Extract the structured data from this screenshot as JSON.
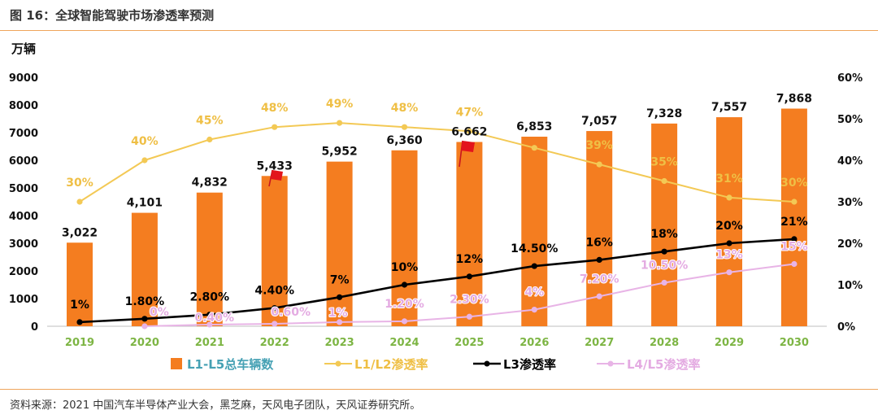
{
  "source": "资料来源：2021 中国汽车半导体产业大会，黑芝麻，天风电子团队，天风证券研究所。",
  "icons": {
    "annotation_flag": "red-flag-icon"
  },
  "colors": {
    "rule": "#efa55c",
    "category_label": "#7db544",
    "title": "#333333"
  },
  "chart_data": {
    "type": "bar",
    "title": "图 16：全球智能驾驶市场渗透率预测",
    "categories": [
      "2019",
      "2020",
      "2021",
      "2022",
      "2023",
      "2024",
      "2025",
      "2026",
      "2027",
      "2028",
      "2029",
      "2030"
    ],
    "left_axis": {
      "label": "万辆",
      "ylim": [
        0,
        9000
      ],
      "ticks": [
        "9000",
        "8000",
        "7000",
        "6000",
        "5000",
        "4000",
        "3000",
        "2000",
        "1000",
        "0"
      ]
    },
    "right_axis": {
      "ylim": [
        0,
        60
      ],
      "ticks": [
        "60%",
        "50%",
        "40%",
        "30%",
        "20%",
        "10%",
        "0%"
      ]
    },
    "series": [
      {
        "name": "L1-L5总车辆数",
        "type": "bar",
        "axis": "left",
        "color": "#f47d20",
        "legend_text_color": "#46a1b4",
        "values": [
          3022,
          4101,
          4832,
          5433,
          5952,
          6360,
          6662,
          6853,
          7057,
          7328,
          7557,
          7868
        ],
        "labels": [
          "3,022",
          "4,101",
          "4,832",
          "5,433",
          "5,952",
          "6,360",
          "6,662",
          "6,853",
          "7,057",
          "7,328",
          "7,557",
          "7,868"
        ]
      },
      {
        "name": "L1/L2渗透率",
        "type": "line",
        "axis": "right",
        "color": "#f3c955",
        "label_color": "#efbf45",
        "values": [
          30,
          40,
          45,
          48,
          49,
          48,
          47,
          43,
          39,
          35,
          31,
          30
        ],
        "labels": [
          "30%",
          "40%",
          "45%",
          "48%",
          "49%",
          "48%",
          "47%",
          "",
          "39%",
          "35%",
          "31%",
          "30%"
        ]
      },
      {
        "name": "L3渗透率",
        "type": "line",
        "axis": "right",
        "color": "#000000",
        "label_color": "#000000",
        "values": [
          1,
          1.8,
          2.8,
          4.4,
          7,
          10,
          12,
          14.5,
          16,
          18,
          20,
          21
        ],
        "labels": [
          "1%",
          "1.80%",
          "2.80%",
          "4.40%",
          "7%",
          "10%",
          "12%",
          "14.50%",
          "16%",
          "18%",
          "20%",
          "21%"
        ]
      },
      {
        "name": "L4/L5渗透率",
        "type": "line",
        "axis": "right",
        "color": "#e8b4e6",
        "label_color": "#e4abe2",
        "values": [
          null,
          0,
          0.4,
          0.6,
          1,
          1.2,
          2.3,
          4,
          7.2,
          10.5,
          13,
          15
        ],
        "labels": [
          "",
          "0%",
          "0.40%",
          "0.60%",
          "1%",
          "1.20%",
          "2.30%",
          "4%",
          "7.20%",
          "10.50%",
          "13%",
          "15%"
        ]
      }
    ],
    "legend": "bottom",
    "grid": false
  }
}
